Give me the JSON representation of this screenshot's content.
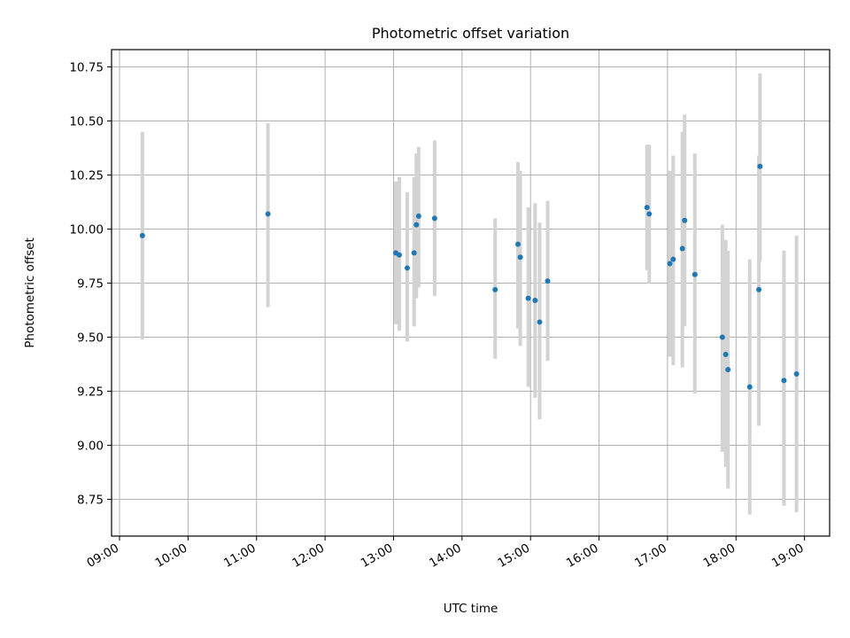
{
  "chart_data": {
    "type": "scatter",
    "title": "Photometric offset variation",
    "xlabel": "UTC time",
    "ylabel": "Photometric offset",
    "x_tick_labels": [
      "09:00",
      "10:00",
      "11:00",
      "12:00",
      "13:00",
      "14:00",
      "15:00",
      "16:00",
      "17:00",
      "18:00",
      "19:00"
    ],
    "y_tick_labels": [
      "8.75",
      "9.00",
      "9.25",
      "9.50",
      "9.75",
      "10.00",
      "10.25",
      "10.50",
      "10.75"
    ],
    "x_ticks": [
      "09:00",
      "10:00",
      "11:00",
      "12:00",
      "13:00",
      "14:00",
      "15:00",
      "16:00",
      "17:00",
      "18:00",
      "19:00"
    ],
    "y_ticks": [
      8.75,
      9.0,
      9.25,
      9.5,
      9.75,
      10.0,
      10.25,
      10.5,
      10.75
    ],
    "xlim": [
      "08:53",
      "19:22"
    ],
    "ylim": [
      8.58,
      10.83
    ],
    "grid": true,
    "colors": {
      "point": "#1f77b4",
      "errorbar": "#d3d3d3",
      "grid": "#b0b0b0"
    },
    "series": [
      {
        "points": [
          {
            "x": "09:20",
            "y": 9.97,
            "ylo": 9.49,
            "yhi": 10.45
          },
          {
            "x": "11:10",
            "y": 10.07,
            "ylo": 9.64,
            "yhi": 10.49
          },
          {
            "x": "13:02",
            "y": 9.89,
            "ylo": 9.56,
            "yhi": 10.22
          },
          {
            "x": "13:05",
            "y": 9.88,
            "ylo": 9.53,
            "yhi": 10.24
          },
          {
            "x": "13:12",
            "y": 9.82,
            "ylo": 9.48,
            "yhi": 10.17
          },
          {
            "x": "13:18",
            "y": 9.89,
            "ylo": 9.55,
            "yhi": 10.24
          },
          {
            "x": "13:20",
            "y": 10.02,
            "ylo": 9.68,
            "yhi": 10.35
          },
          {
            "x": "13:22",
            "y": 10.06,
            "ylo": 9.73,
            "yhi": 10.38
          },
          {
            "x": "13:36",
            "y": 10.05,
            "ylo": 9.69,
            "yhi": 10.41
          },
          {
            "x": "14:29",
            "y": 9.72,
            "ylo": 9.4,
            "yhi": 10.05
          },
          {
            "x": "14:49",
            "y": 9.93,
            "ylo": 9.54,
            "yhi": 10.31
          },
          {
            "x": "14:51",
            "y": 9.87,
            "ylo": 9.46,
            "yhi": 10.27
          },
          {
            "x": "14:58",
            "y": 9.68,
            "ylo": 9.27,
            "yhi": 10.1
          },
          {
            "x": "15:04",
            "y": 9.67,
            "ylo": 9.22,
            "yhi": 10.12
          },
          {
            "x": "15:08",
            "y": 9.57,
            "ylo": 9.12,
            "yhi": 10.03
          },
          {
            "x": "15:15",
            "y": 9.76,
            "ylo": 9.39,
            "yhi": 10.13
          },
          {
            "x": "16:42",
            "y": 10.1,
            "ylo": 9.81,
            "yhi": 10.39
          },
          {
            "x": "16:44",
            "y": 10.07,
            "ylo": 9.75,
            "yhi": 10.39
          },
          {
            "x": "17:02",
            "y": 9.84,
            "ylo": 9.41,
            "yhi": 10.27
          },
          {
            "x": "17:05",
            "y": 9.86,
            "ylo": 9.37,
            "yhi": 10.34
          },
          {
            "x": "17:13",
            "y": 9.91,
            "ylo": 9.36,
            "yhi": 10.45
          },
          {
            "x": "17:15",
            "y": 10.04,
            "ylo": 9.55,
            "yhi": 10.53
          },
          {
            "x": "17:24",
            "y": 9.79,
            "ylo": 9.24,
            "yhi": 10.35
          },
          {
            "x": "17:48",
            "y": 9.5,
            "ylo": 8.97,
            "yhi": 10.02
          },
          {
            "x": "17:51",
            "y": 9.42,
            "ylo": 8.9,
            "yhi": 9.95
          },
          {
            "x": "17:53",
            "y": 9.35,
            "ylo": 8.8,
            "yhi": 9.9
          },
          {
            "x": "18:12",
            "y": 9.27,
            "ylo": 8.68,
            "yhi": 9.86
          },
          {
            "x": "18:20",
            "y": 9.72,
            "ylo": 9.09,
            "yhi": 10.34
          },
          {
            "x": "18:21",
            "y": 10.29,
            "ylo": 9.85,
            "yhi": 10.72
          },
          {
            "x": "18:42",
            "y": 9.3,
            "ylo": 8.72,
            "yhi": 9.9
          },
          {
            "x": "18:53",
            "y": 9.33,
            "ylo": 8.69,
            "yhi": 9.97
          }
        ]
      }
    ]
  }
}
